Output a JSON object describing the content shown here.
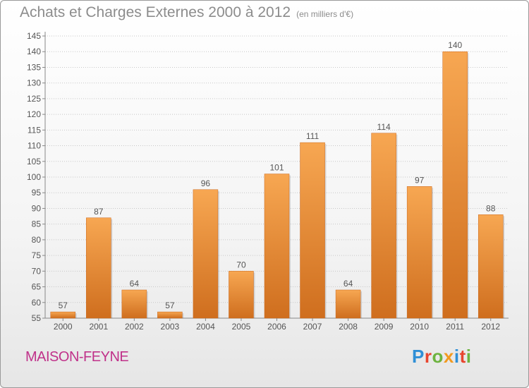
{
  "header": {
    "title": "Achats et Charges Externes 2000 à 2012",
    "subtitle": "(en milliers d'€)"
  },
  "commune": "MAISON-FEYNE",
  "logo": {
    "text": "Proxiti",
    "letters": [
      {
        "char": "P",
        "color": "#2f8fd6"
      },
      {
        "char": "r",
        "color": "#e8452e"
      },
      {
        "char": "o",
        "color": "#6db33f"
      },
      {
        "char": "x",
        "color": "#f29a1f"
      },
      {
        "char": "i",
        "color": "#2f8fd6"
      },
      {
        "char": "t",
        "color": "#e8452e"
      },
      {
        "char": "i",
        "color": "#6db33f"
      }
    ]
  },
  "colors": {
    "bar_light": "#f7a752",
    "bar_dark": "#cf6e1e",
    "grid": "#c8c8c8",
    "axis_text": "#555555",
    "title": "#8c8c8c",
    "commune": "#c0328a"
  },
  "chart_data": {
    "type": "bar",
    "title": "Achats et Charges Externes 2000 à 2012",
    "subtitle": "(en milliers d'€)",
    "categories": [
      "2000",
      "2001",
      "2002",
      "2003",
      "2004",
      "2005",
      "2006",
      "2007",
      "2008",
      "2009",
      "2010",
      "2011",
      "2012"
    ],
    "values": [
      57,
      87,
      64,
      57,
      96,
      70,
      101,
      111,
      64,
      114,
      97,
      140,
      88
    ],
    "ylim": [
      55,
      145
    ],
    "yticks": [
      55,
      60,
      65,
      70,
      75,
      80,
      85,
      90,
      95,
      100,
      105,
      110,
      115,
      120,
      125,
      130,
      135,
      140,
      145
    ],
    "grid": true,
    "data_labels": true
  }
}
